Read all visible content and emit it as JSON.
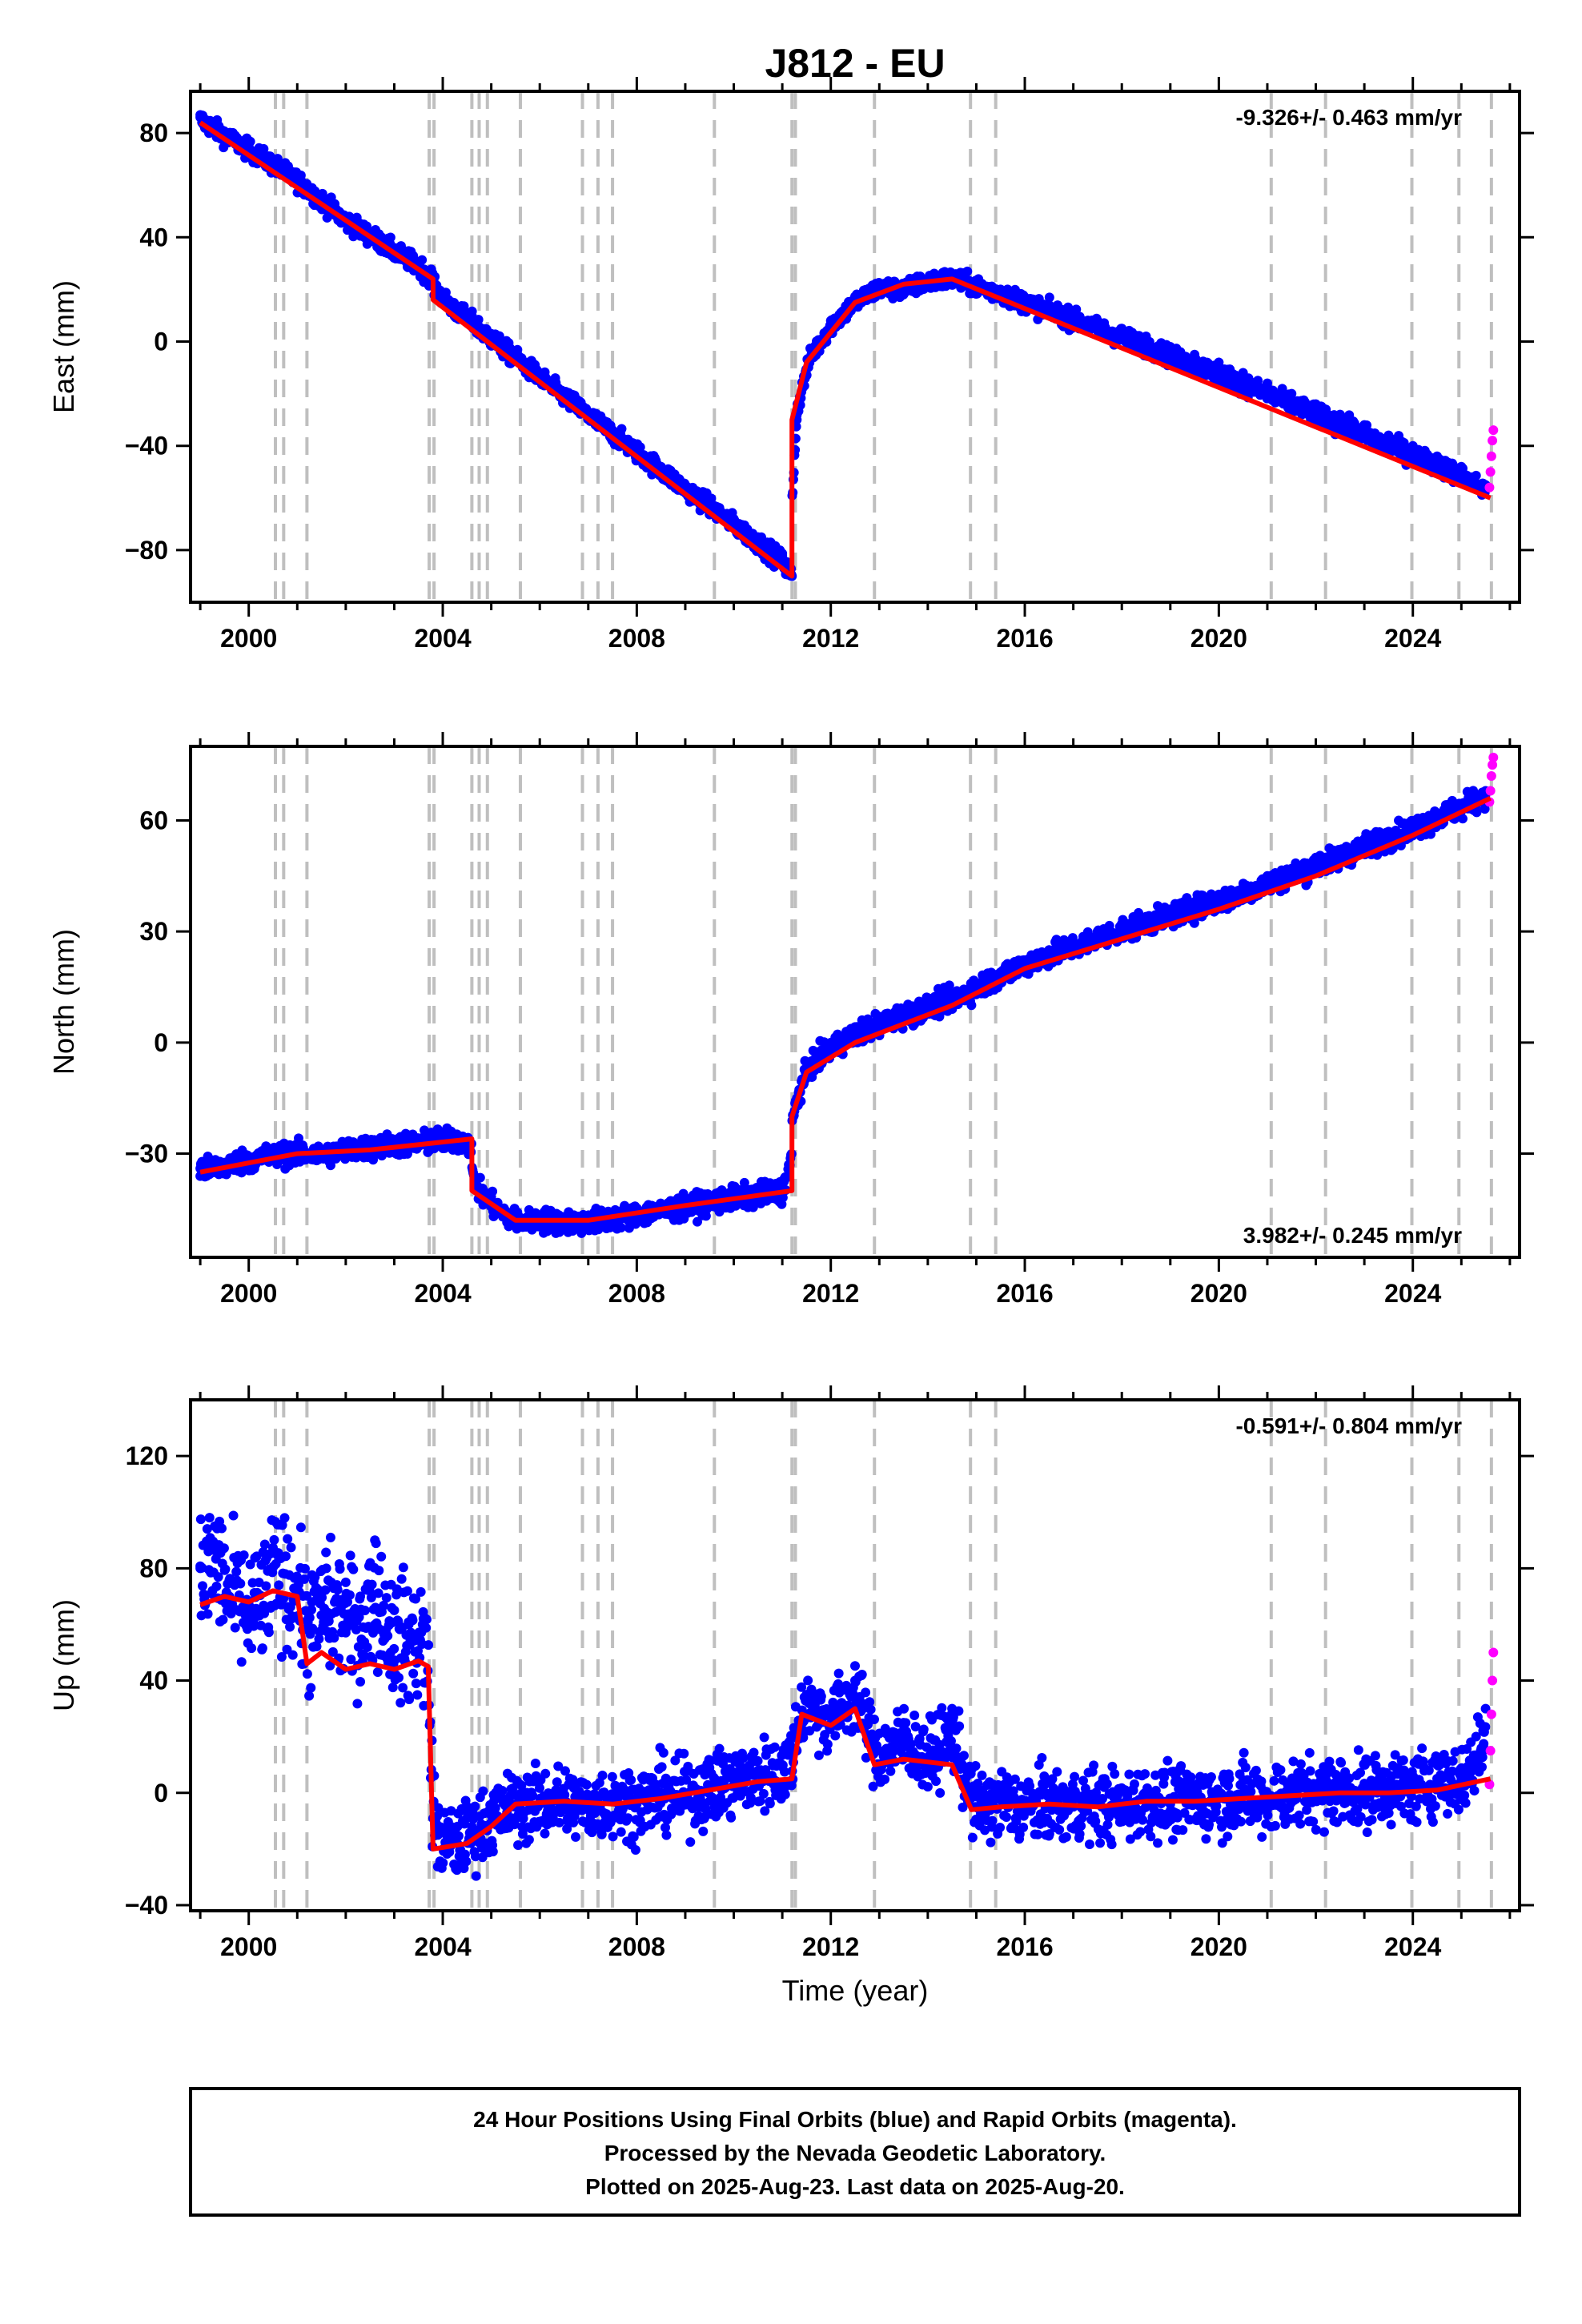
{
  "title": "J812 - EU",
  "chart_data": [
    {
      "type": "scatter",
      "panel": "east",
      "ylabel": "East (mm)",
      "xlabel": "",
      "xlim": [
        1998.8,
        2026.2
      ],
      "ylim": [
        -100,
        96
      ],
      "x_ticks": [
        2000,
        2004,
        2008,
        2012,
        2016,
        2020,
        2024
      ],
      "y_ticks": [
        -80,
        -40,
        0,
        40,
        80
      ],
      "y_tick_labels": [
        "−80",
        "−40",
        "0",
        "40",
        "80"
      ],
      "rate_text": "-9.326+/- 0.463 mm/yr",
      "rate_position": "top-right",
      "grid": false,
      "trend_x": [
        1999.0,
        2003.8,
        2003.8,
        2011.2,
        2011.2,
        2011.5,
        2012.5,
        2013.5,
        2014.5,
        2025.6
      ],
      "trend_y": [
        84,
        24,
        16,
        -90,
        -30,
        -8,
        15,
        22,
        24,
        -60
      ],
      "x": [
        1999.0,
        1999.5,
        2000.0,
        2000.5,
        2001.0,
        2001.5,
        2002.0,
        2002.5,
        2003.0,
        2003.5,
        2003.8,
        2004.2,
        2004.6,
        2005.0,
        2005.5,
        2006.0,
        2006.5,
        2007.0,
        2007.5,
        2008.0,
        2008.5,
        2009.0,
        2009.5,
        2010.0,
        2010.5,
        2011.0,
        2011.2,
        2011.3,
        2011.6,
        2012.0,
        2012.5,
        2013.0,
        2013.5,
        2014.0,
        2014.5,
        2015.0,
        2015.5,
        2016.0,
        2016.5,
        2017.0,
        2017.5,
        2018.0,
        2018.5,
        2019.0,
        2019.5,
        2020.0,
        2020.5,
        2021.0,
        2021.5,
        2022.0,
        2022.5,
        2023.0,
        2023.5,
        2024.0,
        2024.5,
        2025.0,
        2025.5
      ],
      "y": [
        86,
        80,
        75,
        70,
        64,
        55,
        46,
        41,
        35,
        30,
        25,
        15,
        10,
        3,
        -5,
        -12,
        -20,
        -27,
        -34,
        -41,
        -48,
        -55,
        -61,
        -68,
        -75,
        -82,
        -90,
        -30,
        -5,
        8,
        15,
        22,
        18,
        23,
        24,
        22,
        20,
        17,
        14,
        11,
        8,
        5,
        2,
        -2,
        -5,
        -8,
        -12,
        -16,
        -20,
        -24,
        -28,
        -32,
        -36,
        -40,
        -44,
        -48,
        -55
      ],
      "rapid_x": [
        2025.58,
        2025.6,
        2025.62,
        2025.64,
        2025.66
      ],
      "rapid_y": [
        -56,
        -50,
        -44,
        -38,
        -34
      ]
    },
    {
      "type": "scatter",
      "panel": "north",
      "ylabel": "North (mm)",
      "xlabel": "",
      "xlim": [
        1998.8,
        2026.2
      ],
      "ylim": [
        -58,
        80
      ],
      "x_ticks": [
        2000,
        2004,
        2008,
        2012,
        2016,
        2020,
        2024
      ],
      "y_ticks": [
        -30,
        0,
        30,
        60
      ],
      "y_tick_labels": [
        "−30",
        "0",
        "30",
        "60"
      ],
      "rate_text": "3.982+/- 0.245 mm/yr",
      "rate_position": "bottom-right",
      "grid": false,
      "trend_x": [
        1999.0,
        2001.0,
        2002.5,
        2004.6,
        2004.6,
        2005.5,
        2007.0,
        2009.0,
        2011.2,
        2011.2,
        2011.5,
        2012.5,
        2013.5,
        2014.5,
        2016.0,
        2018.0,
        2020.0,
        2022.0,
        2024.0,
        2025.6
      ],
      "trend_y": [
        -35,
        -30,
        -29,
        -26,
        -40,
        -48,
        -48,
        -44,
        -40,
        -20,
        -8,
        0,
        5,
        10,
        20,
        28,
        36,
        45,
        56,
        66
      ],
      "x": [
        1999.0,
        1999.5,
        2000.0,
        2000.5,
        2001.0,
        2001.5,
        2002.0,
        2002.5,
        2003.0,
        2003.5,
        2004.0,
        2004.5,
        2004.8,
        2005.2,
        2005.6,
        2006.0,
        2006.5,
        2007.0,
        2007.5,
        2008.0,
        2008.5,
        2009.0,
        2009.5,
        2010.0,
        2010.5,
        2011.0,
        2011.3,
        2011.6,
        2012.0,
        2012.5,
        2013.0,
        2013.5,
        2014.0,
        2014.5,
        2015.0,
        2015.5,
        2016.0,
        2016.5,
        2017.0,
        2017.5,
        2018.0,
        2018.5,
        2019.0,
        2019.5,
        2020.0,
        2020.5,
        2021.0,
        2021.5,
        2022.0,
        2022.5,
        2023.0,
        2023.5,
        2024.0,
        2024.5,
        2025.0,
        2025.5
      ],
      "y": [
        -34,
        -33,
        -31,
        -30,
        -30,
        -31,
        -29,
        -28,
        -27,
        -27,
        -26,
        -27,
        -41,
        -46,
        -49,
        -48,
        -49,
        -49,
        -48,
        -47,
        -46,
        -45,
        -43,
        -42,
        -41,
        -40,
        -15,
        -5,
        0,
        4,
        7,
        9,
        11,
        13,
        16,
        19,
        22,
        25,
        27,
        30,
        32,
        34,
        36,
        38,
        40,
        42,
        45,
        47,
        50,
        52,
        55,
        57,
        59,
        62,
        64,
        68
      ],
      "rapid_x": [
        2025.58,
        2025.6,
        2025.62,
        2025.64,
        2025.66
      ],
      "rapid_y": [
        65,
        68,
        72,
        75,
        77
      ]
    },
    {
      "type": "scatter",
      "panel": "up",
      "ylabel": "Up (mm)",
      "xlabel": "Time (year)",
      "xlim": [
        1998.8,
        2026.2
      ],
      "ylim": [
        -42,
        140
      ],
      "x_ticks": [
        2000,
        2004,
        2008,
        2012,
        2016,
        2020,
        2024
      ],
      "y_ticks": [
        -40,
        0,
        40,
        80,
        120
      ],
      "y_tick_labels": [
        "−40",
        "0",
        "40",
        "80",
        "120"
      ],
      "rate_text": "-0.591+/- 0.804 mm/yr",
      "rate_position": "top-right",
      "grid": false,
      "trend_x": [
        1999.0,
        1999.5,
        2000.0,
        2000.5,
        2001.0,
        2001.2,
        2001.5,
        2002.0,
        2002.5,
        2003.0,
        2003.5,
        2003.7,
        2003.8,
        2004.5,
        2005.0,
        2005.5,
        2006.5,
        2007.5,
        2008.5,
        2009.5,
        2010.5,
        2011.2,
        2011.4,
        2012.0,
        2012.5,
        2012.9,
        2013.5,
        2014.5,
        2014.9,
        2015.5,
        2016.5,
        2017.5,
        2018.5,
        2019.5,
        2020.5,
        2021.5,
        2022.5,
        2023.5,
        2024.5,
        2025.6
      ],
      "trend_y": [
        67,
        70,
        68,
        72,
        70,
        46,
        50,
        44,
        46,
        44,
        47,
        45,
        -20,
        -18,
        -12,
        -4,
        -3,
        -4,
        -2,
        1,
        4,
        5,
        28,
        24,
        30,
        10,
        12,
        10,
        -6,
        -5,
        -4,
        -5,
        -3,
        -3,
        -2,
        -1,
        0,
        0,
        1,
        5
      ],
      "x": [
        1999.0,
        1999.3,
        1999.6,
        2000.0,
        2000.3,
        2000.6,
        2001.0,
        2001.3,
        2001.6,
        2002.0,
        2002.3,
        2002.6,
        2003.0,
        2003.3,
        2003.6,
        2003.9,
        2004.3,
        2004.6,
        2005.0,
        2005.5,
        2006.0,
        2006.5,
        2007.0,
        2007.5,
        2008.0,
        2008.5,
        2009.0,
        2009.5,
        2010.0,
        2010.5,
        2011.0,
        2011.5,
        2012.0,
        2012.5,
        2013.0,
        2013.5,
        2014.0,
        2014.5,
        2015.0,
        2015.5,
        2016.0,
        2016.5,
        2017.0,
        2017.5,
        2018.0,
        2018.5,
        2019.0,
        2019.5,
        2020.0,
        2020.5,
        2021.0,
        2021.5,
        2022.0,
        2022.5,
        2023.0,
        2023.5,
        2024.0,
        2024.5,
        2025.0,
        2025.5
      ],
      "y": [
        80,
        95,
        70,
        60,
        65,
        85,
        72,
        68,
        80,
        75,
        70,
        90,
        65,
        60,
        62,
        -15,
        -18,
        -12,
        -8,
        -5,
        -4,
        -3,
        -6,
        -2,
        -4,
        0,
        -2,
        2,
        5,
        8,
        10,
        35,
        28,
        40,
        15,
        25,
        12,
        30,
        -5,
        -2,
        -6,
        -4,
        -5,
        -3,
        -6,
        -2,
        -4,
        -3,
        -2,
        -1,
        -3,
        0,
        1,
        2,
        0,
        4,
        2,
        10,
        5,
        30
      ],
      "rapid_x": [
        2025.58,
        2025.6,
        2025.62,
        2025.64,
        2025.66
      ],
      "rapid_y": [
        3,
        15,
        28,
        40,
        50
      ]
    }
  ],
  "event_lines": [
    2000.55,
    2000.72,
    2001.2,
    2003.72,
    2003.82,
    2004.6,
    2004.75,
    2004.92,
    2005.6,
    2006.88,
    2007.2,
    2007.5,
    2009.6,
    2011.2,
    2011.27,
    2012.9,
    2014.88,
    2015.4,
    2021.08,
    2022.2,
    2023.98,
    2024.95,
    2025.62
  ],
  "footer": {
    "line1": "24 Hour Positions Using Final Orbits (blue) and Rapid Orbits (magenta).",
    "line2": "Processed by the Nevada Geodetic Laboratory.",
    "line3": "Plotted on 2025-Aug-23. Last data on 2025-Aug-20."
  },
  "colors": {
    "final_orbits": "#0000ff",
    "rapid_orbits": "#ff00ff",
    "trend": "#ff0000",
    "event_line": "#bfbfbf",
    "frame": "#000000"
  }
}
